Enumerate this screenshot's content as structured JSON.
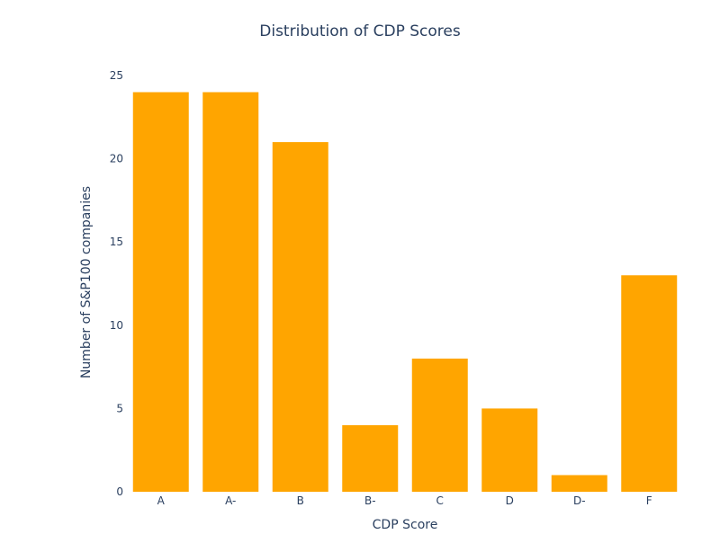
{
  "chart_data": {
    "type": "bar",
    "title": "Distribution of CDP Scores",
    "xlabel": "CDP Score",
    "ylabel": "Number of S&P100 companies",
    "categories": [
      "A",
      "A-",
      "B",
      "B-",
      "C",
      "D",
      "D-",
      "F"
    ],
    "values": [
      24,
      24,
      21,
      4,
      8,
      5,
      1,
      13
    ],
    "ylim": [
      0,
      25
    ],
    "yticks": [
      0,
      5,
      10,
      15,
      20,
      25
    ],
    "grid": false,
    "legend": "none",
    "bar_color": "#FFA500",
    "text_color": "#2a3f5f",
    "background": "#ffffff"
  }
}
